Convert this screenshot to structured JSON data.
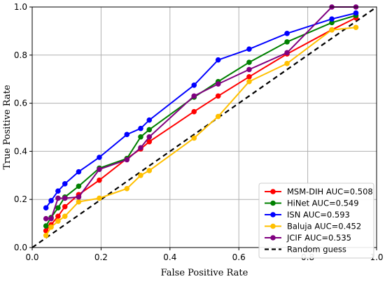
{
  "chart_data": {
    "type": "line",
    "title": "",
    "xlabel": "False Positive Rate",
    "ylabel": "True Positive Rate",
    "xlim": [
      0,
      1
    ],
    "ylim": [
      0,
      1
    ],
    "xticks": [
      "0.0",
      "0.2",
      "0.4",
      "0.6",
      "0.8",
      "1.0"
    ],
    "yticks": [
      "0.0",
      "0.2",
      "0.4",
      "0.6",
      "0.8",
      "1.0"
    ],
    "grid": true,
    "legend_position": "bottom-right",
    "series": [
      {
        "name": "MSM-DIH AUC=0.508",
        "color": "#ff0000",
        "x": [
          0.04,
          0.055,
          0.075,
          0.095,
          0.135,
          0.195,
          0.275,
          0.315,
          0.34,
          0.47,
          0.54,
          0.63,
          0.74,
          0.87,
          0.94
        ],
        "y": [
          0.07,
          0.095,
          0.13,
          0.17,
          0.22,
          0.28,
          0.37,
          0.41,
          0.44,
          0.565,
          0.63,
          0.71,
          0.805,
          0.905,
          0.955
        ]
      },
      {
        "name": "HiNet AUC=0.549",
        "color": "#008000",
        "x": [
          0.04,
          0.055,
          0.075,
          0.095,
          0.135,
          0.195,
          0.275,
          0.315,
          0.34,
          0.47,
          0.54,
          0.63,
          0.74,
          0.87,
          0.94
        ],
        "y": [
          0.09,
          0.125,
          0.165,
          0.21,
          0.255,
          0.33,
          0.37,
          0.46,
          0.49,
          0.625,
          0.69,
          0.77,
          0.855,
          0.935,
          0.965
        ]
      },
      {
        "name": "ISN AUC=0.593",
        "color": "#0000ff",
        "x": [
          0.04,
          0.055,
          0.075,
          0.095,
          0.135,
          0.195,
          0.275,
          0.315,
          0.34,
          0.47,
          0.54,
          0.63,
          0.74,
          0.87,
          0.94
        ],
        "y": [
          0.165,
          0.195,
          0.235,
          0.265,
          0.315,
          0.375,
          0.47,
          0.495,
          0.53,
          0.675,
          0.78,
          0.825,
          0.89,
          0.95,
          0.975
        ]
      },
      {
        "name": "Baluja AUC=0.452",
        "color": "#ffc000",
        "x": [
          0.04,
          0.055,
          0.075,
          0.095,
          0.135,
          0.195,
          0.275,
          0.315,
          0.34,
          0.47,
          0.54,
          0.63,
          0.74,
          0.87,
          0.94
        ],
        "y": [
          0.05,
          0.085,
          0.11,
          0.13,
          0.19,
          0.205,
          0.245,
          0.3,
          0.32,
          0.455,
          0.545,
          0.69,
          0.765,
          0.905,
          0.915
        ]
      },
      {
        "name": "JCIF AUC=0.535",
        "color": "#800080",
        "x": [
          0.04,
          0.055,
          0.075,
          0.095,
          0.135,
          0.195,
          0.275,
          0.315,
          0.34,
          0.47,
          0.54,
          0.63,
          0.74,
          0.87,
          0.94
        ],
        "y": [
          0.12,
          0.12,
          0.205,
          0.205,
          0.21,
          0.325,
          0.365,
          0.415,
          0.46,
          0.63,
          0.68,
          0.74,
          0.81,
          1.0,
          1.0
        ]
      }
    ],
    "reference_line": {
      "name": "Random guess",
      "color": "#000000",
      "style": "dashed",
      "x": [
        0,
        1
      ],
      "y": [
        0,
        1
      ]
    }
  }
}
